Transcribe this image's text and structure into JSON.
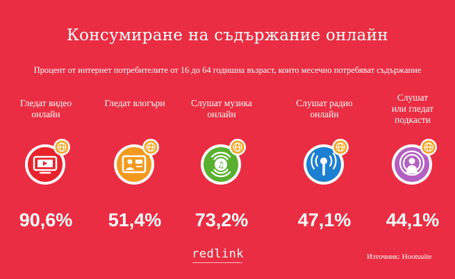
{
  "title": "Консумиране на съдържание онлайн",
  "subtitle": "Процент от интернет потребителите от 16 до 64 годишна възраст, които месечно потребяват съдържание",
  "items": [
    {
      "label": "Гледат видео\nонлайн",
      "value": "90,6%",
      "icon": "video-play-icon",
      "color": "#e8232c"
    },
    {
      "label": "Гледат влогъри",
      "value": "51,4%",
      "icon": "vlogger-icon",
      "color": "#f39a1e"
    },
    {
      "label": "Слушат музика\nонлайн",
      "value": "73,2%",
      "icon": "music-note-icon",
      "color": "#58b12e"
    },
    {
      "label": "Слушат радио\nонлайн",
      "value": "47,1%",
      "icon": "radio-broadcast-icon",
      "color": "#1d7fd1"
    },
    {
      "label": "Слушат\nили гледат\nподкасти",
      "value": "44,1%",
      "icon": "podcast-icon",
      "color": "#b45fc2"
    }
  ],
  "badge_icon": "globe-icon",
  "badge_color": "#f6a623",
  "brand": "redlink",
  "source": "Източник: Hootsuite"
}
